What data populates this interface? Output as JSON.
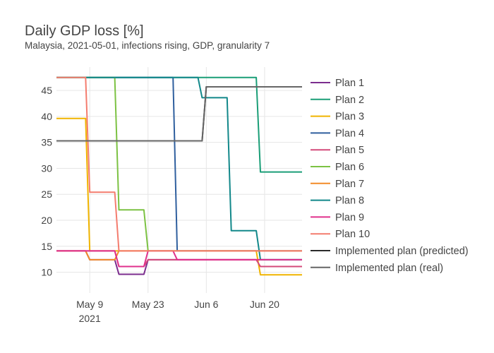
{
  "chart_data": {
    "type": "line",
    "title": "Daily GDP loss [%]",
    "subtitle": "Malaysia, 2021-05-01, infections rising, GDP, granularity 7",
    "xlabel": "",
    "ylabel": "",
    "x_start": "2021-05-01",
    "x_end": "2021-06-29",
    "ylim": [
      6,
      49.5
    ],
    "x_ticks": [
      {
        "date": "2021-05-09",
        "label": "May 9",
        "sublabel": "2021"
      },
      {
        "date": "2021-05-23",
        "label": "May 23",
        "sublabel": ""
      },
      {
        "date": "2021-06-06",
        "label": "Jun 6",
        "sublabel": ""
      },
      {
        "date": "2021-06-20",
        "label": "Jun 20",
        "sublabel": ""
      }
    ],
    "y_ticks": [
      10,
      15,
      20,
      25,
      30,
      35,
      40,
      45
    ],
    "grid": true,
    "legend_position": "right",
    "series": [
      {
        "name": "Plan 1",
        "color": "#7b2d8e",
        "points": [
          [
            "2021-05-01",
            14.1
          ],
          [
            "2021-05-08",
            14.1
          ],
          [
            "2021-05-09",
            12.4
          ],
          [
            "2021-05-15",
            12.4
          ],
          [
            "2021-05-16",
            9.6
          ],
          [
            "2021-05-22",
            9.6
          ],
          [
            "2021-05-23",
            12.4
          ],
          [
            "2021-06-29",
            12.4
          ]
        ]
      },
      {
        "name": "Plan 2",
        "color": "#1a9e77",
        "points": [
          [
            "2021-05-01",
            47.5
          ],
          [
            "2021-06-18",
            47.5
          ],
          [
            "2021-06-19",
            29.3
          ],
          [
            "2021-06-29",
            29.3
          ]
        ]
      },
      {
        "name": "Plan 3",
        "color": "#f0b400",
        "points": [
          [
            "2021-05-01",
            39.6
          ],
          [
            "2021-05-08",
            39.6
          ],
          [
            "2021-05-09",
            14.1
          ],
          [
            "2021-06-18",
            14.1
          ],
          [
            "2021-06-19",
            9.5
          ],
          [
            "2021-06-29",
            9.5
          ]
        ]
      },
      {
        "name": "Plan 4",
        "color": "#2f5f9e",
        "points": [
          [
            "2021-05-01",
            47.5
          ],
          [
            "2021-05-29",
            47.5
          ],
          [
            "2021-05-30",
            14.1
          ],
          [
            "2021-06-29",
            14.1
          ]
        ]
      },
      {
        "name": "Plan 5",
        "color": "#d44a7a",
        "points": [
          [
            "2021-05-01",
            14.1
          ],
          [
            "2021-05-15",
            14.1
          ],
          [
            "2021-05-16",
            11.1
          ],
          [
            "2021-05-22",
            11.1
          ],
          [
            "2021-05-23",
            12.4
          ],
          [
            "2021-06-18",
            12.4
          ],
          [
            "2021-06-19",
            11.1
          ],
          [
            "2021-06-29",
            11.1
          ]
        ]
      },
      {
        "name": "Plan 6",
        "color": "#7cc243",
        "points": [
          [
            "2021-05-01",
            47.5
          ],
          [
            "2021-05-15",
            47.5
          ],
          [
            "2021-05-16",
            22.0
          ],
          [
            "2021-05-22",
            22.0
          ],
          [
            "2021-05-23",
            14.1
          ],
          [
            "2021-06-29",
            14.1
          ]
        ]
      },
      {
        "name": "Plan 7",
        "color": "#f28c28",
        "points": [
          [
            "2021-05-01",
            14.1
          ],
          [
            "2021-05-08",
            14.1
          ],
          [
            "2021-05-09",
            12.4
          ],
          [
            "2021-05-15",
            12.4
          ],
          [
            "2021-05-16",
            14.1
          ],
          [
            "2021-06-29",
            14.1
          ]
        ]
      },
      {
        "name": "Plan 8",
        "color": "#12888a",
        "points": [
          [
            "2021-05-01",
            47.5
          ],
          [
            "2021-06-04",
            47.5
          ],
          [
            "2021-06-05",
            43.6
          ],
          [
            "2021-06-11",
            43.6
          ],
          [
            "2021-06-12",
            18.0
          ],
          [
            "2021-06-18",
            18.0
          ],
          [
            "2021-06-19",
            12.4
          ],
          [
            "2021-06-29",
            12.4
          ]
        ]
      },
      {
        "name": "Plan 9",
        "color": "#e0318c",
        "points": [
          [
            "2021-05-01",
            14.1
          ],
          [
            "2021-05-15",
            14.1
          ],
          [
            "2021-05-16",
            11.1
          ],
          [
            "2021-05-22",
            11.1
          ],
          [
            "2021-05-23",
            14.1
          ],
          [
            "2021-05-29",
            14.1
          ],
          [
            "2021-05-30",
            12.4
          ],
          [
            "2021-06-29",
            12.4
          ]
        ]
      },
      {
        "name": "Plan 10",
        "color": "#f47c6e",
        "points": [
          [
            "2021-05-01",
            47.5
          ],
          [
            "2021-05-08",
            47.5
          ],
          [
            "2021-05-09",
            25.4
          ],
          [
            "2021-05-15",
            25.4
          ],
          [
            "2021-05-16",
            14.1
          ],
          [
            "2021-06-29",
            14.1
          ]
        ]
      },
      {
        "name": "Implemented plan (predicted)",
        "color": "#2b2b2b",
        "points": [
          [
            "2021-05-01",
            35.3
          ],
          [
            "2021-06-05",
            35.3
          ],
          [
            "2021-06-06",
            45.7
          ],
          [
            "2021-06-29",
            45.7
          ]
        ]
      },
      {
        "name": "Implemented plan (real)",
        "color": "#666666",
        "points": [
          [
            "2021-05-01",
            35.3
          ],
          [
            "2021-06-05",
            35.3
          ],
          [
            "2021-06-06",
            45.7
          ],
          [
            "2021-06-29",
            45.7
          ]
        ]
      }
    ]
  }
}
